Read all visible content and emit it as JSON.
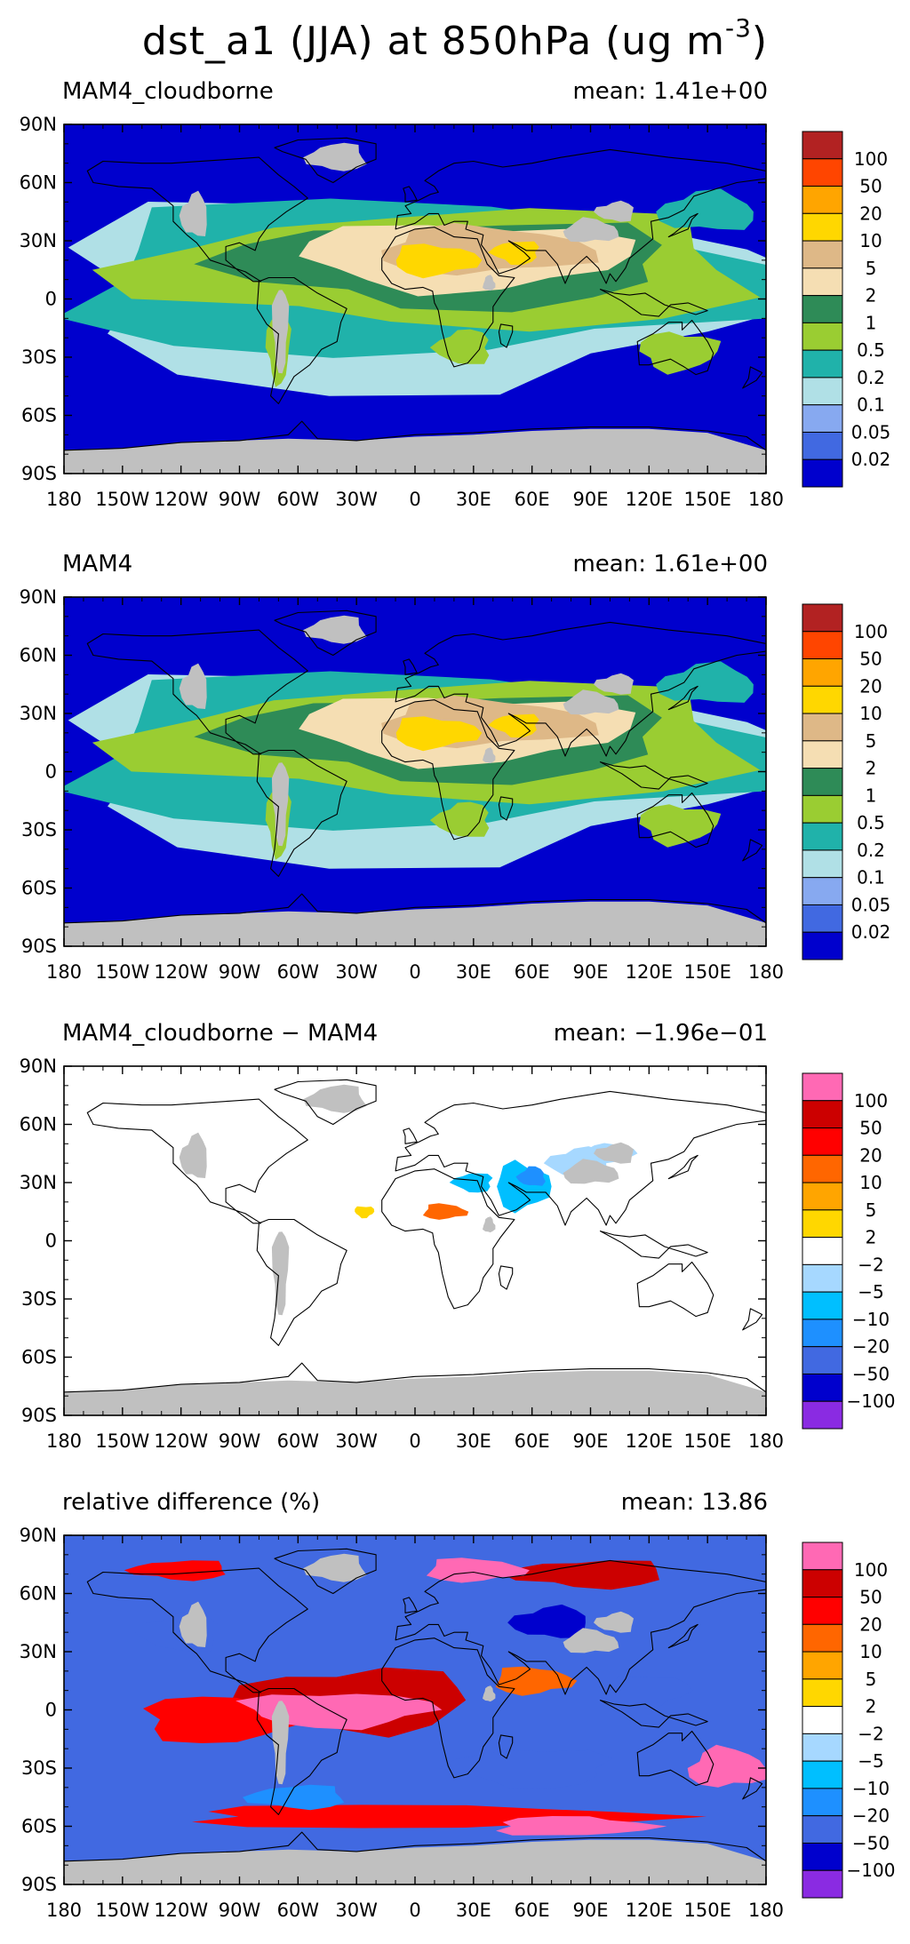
{
  "figure": {
    "title_main": "dst_a1 (JJA) at 850hPa (ug m",
    "title_exp": "-3",
    "title_end": ")"
  },
  "axes": {
    "lon_ticks": [
      "180",
      "150W",
      "120W",
      "90W",
      "60W",
      "30W",
      "0",
      "30E",
      "60E",
      "90E",
      "120E",
      "150E",
      "180"
    ],
    "lat_ticks": [
      "90N",
      "60N",
      "30N",
      "0",
      "30S",
      "60S",
      "90S"
    ]
  },
  "colors": {
    "land_missing": "#c0c0c0",
    "coastline": "#000000"
  },
  "panels": [
    {
      "name": "MAM4_cloudborne",
      "left_title": "MAM4_cloudborne",
      "right_title": "mean: 1.41e+00",
      "field_type": "concentration",
      "colorbar": {
        "labels": [
          "100",
          "50",
          "20",
          "10",
          "5",
          "2",
          "1",
          "0.5",
          "0.2",
          "0.1",
          "0.05",
          "0.02"
        ],
        "colors": [
          "#b22222",
          "#ff4500",
          "#ffa500",
          "#ffd700",
          "#deb887",
          "#f5deb3",
          "#2e8b57",
          "#9acd32",
          "#20b2aa",
          "#b0e0e6",
          "#87a9f0",
          "#4169e1",
          "#0000cd"
        ]
      }
    },
    {
      "name": "MAM4",
      "left_title": "MAM4",
      "right_title": "mean: 1.61e+00",
      "field_type": "concentration",
      "colorbar": {
        "labels": [
          "100",
          "50",
          "20",
          "10",
          "5",
          "2",
          "1",
          "0.5",
          "0.2",
          "0.1",
          "0.05",
          "0.02"
        ],
        "colors": [
          "#b22222",
          "#ff4500",
          "#ffa500",
          "#ffd700",
          "#deb887",
          "#f5deb3",
          "#2e8b57",
          "#9acd32",
          "#20b2aa",
          "#b0e0e6",
          "#87a9f0",
          "#4169e1",
          "#0000cd"
        ]
      }
    },
    {
      "name": "difference",
      "left_title": "MAM4_cloudborne − MAM4",
      "right_title": "mean: −1.96e−01",
      "field_type": "difference",
      "colorbar": {
        "labels": [
          "100",
          "50",
          "20",
          "10",
          "5",
          "2",
          "−2",
          "−5",
          "−10",
          "−20",
          "−50",
          "−100"
        ],
        "colors": [
          "#ff69b4",
          "#cc0000",
          "#ff0000",
          "#ff6600",
          "#ffa500",
          "#ffd700",
          "#ffffff",
          "#a6d8ff",
          "#00bfff",
          "#1e90ff",
          "#4169e1",
          "#0000cd",
          "#8a2be2"
        ]
      }
    },
    {
      "name": "relative-difference",
      "left_title": "relative difference (%)",
      "right_title": "mean: 13.86",
      "field_type": "relative",
      "colorbar": {
        "labels": [
          "100",
          "50",
          "20",
          "10",
          "5",
          "2",
          "−2",
          "−5",
          "−10",
          "−20",
          "−50",
          "−100"
        ],
        "colors": [
          "#ff69b4",
          "#cc0000",
          "#ff0000",
          "#ff6600",
          "#ffa500",
          "#ffd700",
          "#ffffff",
          "#a6d8ff",
          "#00bfff",
          "#1e90ff",
          "#4169e1",
          "#0000cd",
          "#8a2be2"
        ]
      }
    }
  ]
}
